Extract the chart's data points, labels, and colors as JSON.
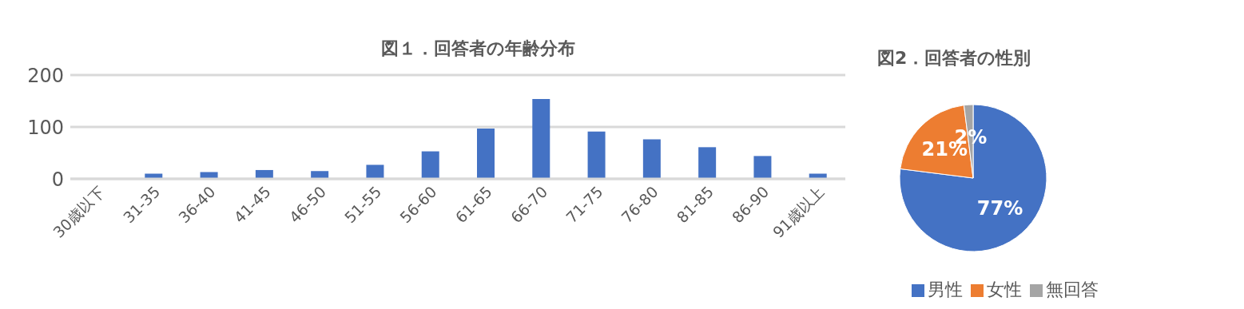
{
  "chart_data": [
    {
      "type": "bar",
      "title": "図１．回答者の年齢分布",
      "categories": [
        "30歳以下",
        "31-35",
        "36-40",
        "41-45",
        "46-50",
        "51-55",
        "56-60",
        "61-65",
        "66-70",
        "71-75",
        "76-80",
        "81-85",
        "86-90",
        "91歳以上"
      ],
      "values": [
        0,
        10,
        13,
        17,
        15,
        27,
        53,
        97,
        154,
        91,
        76,
        61,
        44,
        10
      ],
      "color": "#4472c4",
      "ylim": [
        0,
        200
      ],
      "yticks": [
        0,
        100,
        200
      ],
      "grid": "y"
    },
    {
      "type": "pie",
      "title": "図2．回答者の性別",
      "categories": [
        "男性",
        "女性",
        "無回答"
      ],
      "values": [
        77,
        21,
        2
      ],
      "colors": [
        "#4472c4",
        "#ed7d31",
        "#a5a5a5"
      ],
      "value_labels": [
        "77%",
        "21%",
        "2%"
      ],
      "legend": "bottom"
    }
  ]
}
